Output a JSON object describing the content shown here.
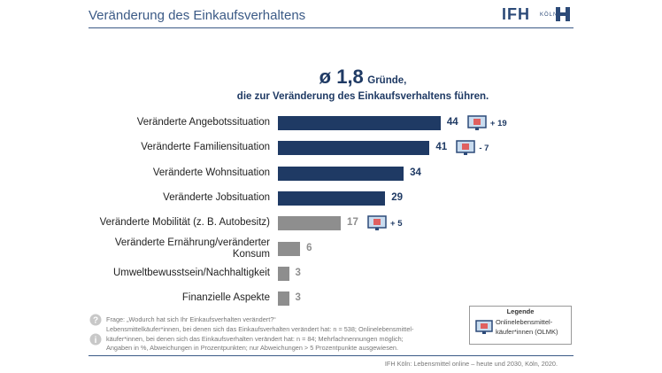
{
  "header": {
    "title": "Veränderung des Einkaufsverhaltens",
    "logo": "IFH",
    "logo_sub": "KÖLN"
  },
  "chart_data": {
    "type": "hbar",
    "headline_big": "ø 1,8",
    "headline_rest": "Gründe,",
    "subtitle": "die zur Veränderung des Einkaufsverhaltens führen.",
    "categories": [
      "Veränderte Angebotssituation",
      "Veränderte Familiensituation",
      "Veränderte Wohnsituation",
      "Veränderte Jobsituation",
      "Veränderte Mobilität (z. B. Autobesitz)",
      "Veränderte Ernährung/veränderter\nKonsum",
      "Umweltbewusstsein/Nachhaltigkeit",
      "Finanzielle Aspekte"
    ],
    "values": [
      44,
      41,
      34,
      29,
      17,
      6,
      3,
      3
    ],
    "colors": [
      "#1f3a64",
      "#1f3a64",
      "#1f3a64",
      "#1f3a64",
      "#8e8e8e",
      "#8e8e8e",
      "#8e8e8e",
      "#8e8e8e"
    ],
    "olmk_changes": [
      "+ 19",
      "- 7",
      null,
      null,
      "+ 5",
      null,
      null,
      null
    ]
  },
  "notes": {
    "question": "Frage: „Wodurch hat sich Ihr Einkaufsverhalten verändert?“",
    "info": "Lebensmittelkäufer*innen, bei denen sich das Einkaufsverhalten verändert hat: n = 538; Onlinelebensmittel-\nkäufer*innen, bei denen sich das Einkaufsverhalten verändert hat: n = 84; Mehrfachnennungen möglich;\nAngaben in %, Abweichungen in Prozentpunkten; nur Abweichungen > 5 Prozentpunkte ausgewiesen.",
    "source": "IFH Köln: Lebensmittel online – heute und 2030, Köln, 2020."
  },
  "legend": {
    "title": "Legende",
    "entry": "Onlinelebensmittel-\nkäufer*innen (OLMK)"
  }
}
